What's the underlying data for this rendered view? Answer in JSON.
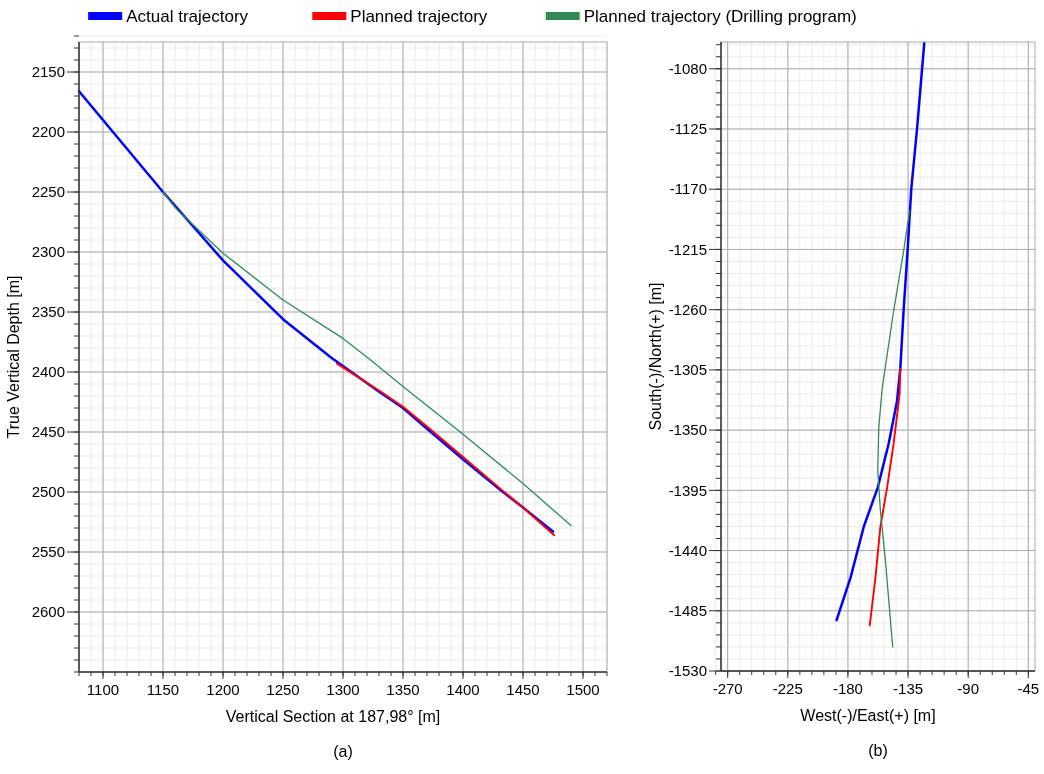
{
  "chart_data": [
    {
      "type": "line",
      "xlabel": "Vertical Section at 187,98° [m]",
      "ylabel": "True Vertical Depth [m]",
      "xlim": [
        1080,
        1520
      ],
      "ylim": [
        2650,
        2125
      ],
      "xticks": [
        1100,
        1150,
        1200,
        1250,
        1300,
        1350,
        1400,
        1450,
        1500
      ],
      "yticks": [
        2150,
        2200,
        2250,
        2300,
        2350,
        2400,
        2450,
        2500,
        2550,
        2600
      ],
      "grid": true,
      "legend": "top",
      "annotations": [
        "(a)"
      ],
      "series": [
        {
          "name": "Actual trajectory",
          "color": "#0000ff",
          "x": [
            1080,
            1150,
            1200,
            1250,
            1290,
            1331,
            1350,
            1372,
            1399,
            1432,
            1450,
            1475
          ],
          "values": [
            2166,
            2250,
            2307,
            2356,
            2388,
            2417,
            2430,
            2449,
            2472,
            2499,
            2513,
            2533
          ]
        },
        {
          "name": "Planned trajectory",
          "color": "#ff0000",
          "x": [
            1295,
            1331,
            1350,
            1372,
            1399,
            1432,
            1450,
            1476
          ],
          "values": [
            2393,
            2416,
            2429,
            2447,
            2470,
            2498,
            2513,
            2536
          ]
        },
        {
          "name": "Planned trajectory (Drilling program)",
          "color": "#2e8b57",
          "x": [
            1150,
            1161,
            1200,
            1250,
            1300,
            1323,
            1350,
            1399,
            1450,
            1490
          ],
          "values": [
            2250,
            2264,
            2301,
            2340,
            2372,
            2390,
            2412,
            2451,
            2493,
            2528
          ]
        }
      ]
    },
    {
      "type": "line",
      "xlabel": "West(-)/East(+) [m]",
      "ylabel": "South(-)/North(+) [m]",
      "xlim": [
        -275,
        -40
      ],
      "ylim": [
        -1530,
        -1060
      ],
      "xticks": [
        -270,
        -225,
        -180,
        -135,
        -90,
        -45
      ],
      "yticks": [
        -1530,
        -1485,
        -1440,
        -1395,
        -1350,
        -1305,
        -1260,
        -1215,
        -1170,
        -1125,
        -1080
      ],
      "grid": true,
      "annotations": [
        "(b)"
      ],
      "series": [
        {
          "color": "#0000ff",
          "x": [
            -122.9,
            -128.3,
            -132.6,
            -135.3,
            -138.3,
            -140.8,
            -143.2,
            -149.5,
            -157.7,
            -168.1,
            -178,
            -188.5
          ],
          "values": [
            -1061,
            -1125,
            -1170,
            -1215,
            -1260,
            -1304,
            -1328,
            -1360,
            -1393,
            -1422,
            -1460,
            -1492
          ]
        },
        {
          "color": "#ff0000",
          "x": [
            -140.8,
            -141.3,
            -145.8,
            -150.7,
            -155.7,
            -159.4,
            -163.7
          ],
          "values": [
            -1304,
            -1323,
            -1360,
            -1393,
            -1422,
            -1460,
            -1496
          ]
        },
        {
          "color": "#2e8b57",
          "x": [
            -133.8,
            -138.3,
            -145.8,
            -154.4,
            -156.9,
            -157.7,
            -155.7,
            -152,
            -146.5
          ],
          "values": [
            -1186,
            -1216,
            -1261,
            -1319,
            -1348,
            -1380,
            -1410,
            -1447,
            -1512
          ]
        }
      ]
    }
  ]
}
